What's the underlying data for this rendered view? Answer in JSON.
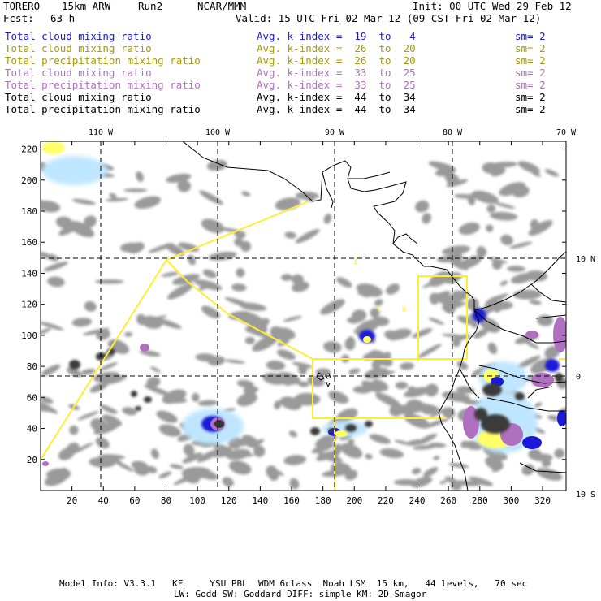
{
  "header": {
    "model": "TORERO",
    "grid": "15km ARW",
    "run": "Run2",
    "org": "NCAR/MMM",
    "init": "Init: 00 UTC Wed 29 Feb 12",
    "fcst_label": "Fcst:",
    "fcst_value": "63 h",
    "valid": "Valid: 15 UTC Fri 02 Mar 12 (09 CST Fri 02 Mar 12)"
  },
  "legend": [
    {
      "field": "Total cloud mixing ratio",
      "kindex": "Avg. k-index =  19  to   4",
      "sm": "sm= 2",
      "color": "#1a1ad6"
    },
    {
      "field": "Total cloud mixing ratio",
      "kindex": "Avg. k-index =  26  to  20",
      "sm": "sm= 2",
      "color": "#a89a00"
    },
    {
      "field": "Total precipitation mixing ratio",
      "kindex": "Avg. k-index =  26  to  20",
      "sm": "sm= 2",
      "color": "#a89a00"
    },
    {
      "field": "Total cloud mixing ratio",
      "kindex": "Avg. k-index =  33  to  25",
      "sm": "sm= 2",
      "color": "#b070c0"
    },
    {
      "field": "Total precipitation mixing ratio",
      "kindex": "Avg. k-index =  33  to  25",
      "sm": "sm= 2",
      "color": "#b070c0"
    },
    {
      "field": "Total cloud mixing ratio",
      "kindex": "Avg. k-index =  44  to  34",
      "sm": "sm= 2",
      "color": "#000000"
    },
    {
      "field": "Total precipitation mixing ratio",
      "kindex": "Avg. k-index =  44  to  34",
      "sm": "sm= 2",
      "color": "#000000"
    }
  ],
  "map": {
    "lon_labels": [
      "110 W",
      "100 W",
      "90 W",
      "80 W",
      "70 W"
    ],
    "lat_labels_right": [
      "10 N",
      "0",
      "10 S"
    ],
    "x_ticks": [
      "20",
      "40",
      "60",
      "80",
      "100",
      "120",
      "140",
      "160",
      "180",
      "200",
      "220",
      "240",
      "260",
      "280",
      "300",
      "320"
    ],
    "y_ticks": [
      "20",
      "40",
      "60",
      "80",
      "100",
      "120",
      "140",
      "160",
      "180",
      "200",
      "220"
    ],
    "x_range": [
      0,
      335
    ],
    "y_range": [
      0,
      225
    ],
    "colors": {
      "cloud_gray": "#9a9a9a",
      "dark": "#3a3a3a",
      "blue": "#1a1ad6",
      "light_blue": "#bfe6ff",
      "purple": "#b070c0",
      "yellow": "#ffff44",
      "boundary_yellow": "#ffee33",
      "coast": "#000000"
    }
  },
  "footer": {
    "line1": "Model Info: V3.3.1   KF     YSU PBL  WDM 6class  Noah LSM  15 km,   44 levels,   70 sec",
    "line2": "LW: Godd SW: Goddard DIFF: simple KM: 2D Smagor"
  }
}
